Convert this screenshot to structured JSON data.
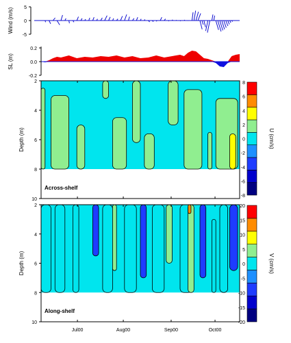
{
  "figure": {
    "colors": {
      "wind": "#1010d0",
      "sl_positive": "#ee0000",
      "sl_negative": "#1010e0",
      "contour": "#000000",
      "frame": "#000000"
    },
    "time_axis": {
      "ticks": [
        {
          "label": "Jul00"
        },
        {
          "label": "Aug00"
        },
        {
          "label": "Sep00"
        },
        {
          "label": "Oct00"
        }
      ]
    }
  },
  "chart_data": [
    {
      "type": "line",
      "variant": "wind stick plot",
      "ylabel": "Wind (m/s)",
      "ylim": [
        -5,
        5
      ],
      "yticks": [
        "-5",
        "0",
        "5"
      ],
      "note": "values approximated from stick tips (u, v) per time step",
      "sticks": [
        {
          "t": 0.02,
          "u": 0.2,
          "v": -0.6
        },
        {
          "t": 0.04,
          "u": 0.6,
          "v": -1.2
        },
        {
          "t": 0.06,
          "u": 0.8,
          "v": 1.0
        },
        {
          "t": 0.08,
          "u": 1.0,
          "v": -1.6
        },
        {
          "t": 0.1,
          "u": 0.6,
          "v": 2.0
        },
        {
          "t": 0.12,
          "u": 0.4,
          "v": 0.8
        },
        {
          "t": 0.14,
          "u": 0.2,
          "v": -1.0
        },
        {
          "t": 0.16,
          "u": 0.4,
          "v": -0.6
        },
        {
          "t": 0.18,
          "u": 0.6,
          "v": 1.4
        },
        {
          "t": 0.2,
          "u": 0.5,
          "v": 0.8
        },
        {
          "t": 0.22,
          "u": 0.3,
          "v": 0.5
        },
        {
          "t": 0.24,
          "u": 0.4,
          "v": 1.0
        },
        {
          "t": 0.26,
          "u": 0.5,
          "v": 1.2
        },
        {
          "t": 0.28,
          "u": 0.3,
          "v": 0.6
        },
        {
          "t": 0.3,
          "u": 0.6,
          "v": 1.0
        },
        {
          "t": 0.32,
          "u": 0.9,
          "v": 1.8
        },
        {
          "t": 0.34,
          "u": 0.6,
          "v": 1.3
        },
        {
          "t": 0.36,
          "u": 0.4,
          "v": 0.8
        },
        {
          "t": 0.38,
          "u": 0.5,
          "v": 0.6
        },
        {
          "t": 0.4,
          "u": 0.7,
          "v": 1.6
        },
        {
          "t": 0.42,
          "u": 0.8,
          "v": 2.2
        },
        {
          "t": 0.44,
          "u": 0.4,
          "v": 1.4
        },
        {
          "t": 0.46,
          "u": 0.6,
          "v": 0.8
        },
        {
          "t": 0.48,
          "u": 0.5,
          "v": 1.2
        },
        {
          "t": 0.5,
          "u": 0.3,
          "v": 0.6
        },
        {
          "t": 0.52,
          "u": 0.2,
          "v": 0.4
        },
        {
          "t": 0.54,
          "u": 0.5,
          "v": -0.5
        },
        {
          "t": 0.56,
          "u": 0.4,
          "v": -0.4
        },
        {
          "t": 0.58,
          "u": 0.2,
          "v": -0.3
        },
        {
          "t": 0.6,
          "u": 0.6,
          "v": 1.2
        },
        {
          "t": 0.62,
          "u": 0.5,
          "v": 0.6
        },
        {
          "t": 0.64,
          "u": 0.3,
          "v": -0.2
        },
        {
          "t": 0.66,
          "u": 0.2,
          "v": 0.3
        },
        {
          "t": 0.68,
          "u": 0.1,
          "v": 0.2
        },
        {
          "t": 0.7,
          "u": 0.2,
          "v": -0.2
        },
        {
          "t": 0.72,
          "u": 0.3,
          "v": 0.2
        },
        {
          "t": 0.74,
          "u": 0.1,
          "v": -0.1
        },
        {
          "t": 0.76,
          "u": 0.4,
          "v": 3.0
        },
        {
          "t": 0.77,
          "u": 0.6,
          "v": 3.6
        },
        {
          "t": 0.78,
          "u": 0.9,
          "v": 3.2
        },
        {
          "t": 0.79,
          "u": 1.0,
          "v": 2.6
        },
        {
          "t": 0.8,
          "u": 0.8,
          "v": -3.2
        },
        {
          "t": 0.81,
          "u": 0.5,
          "v": -1.5
        },
        {
          "t": 0.82,
          "u": 0.6,
          "v": -2.4
        },
        {
          "t": 0.84,
          "u": -0.8,
          "v": -3.8
        },
        {
          "t": 0.85,
          "u": -0.9,
          "v": -4.4
        },
        {
          "t": 0.86,
          "u": 0.4,
          "v": 2.2
        },
        {
          "t": 0.87,
          "u": 0.3,
          "v": 1.8
        },
        {
          "t": 0.88,
          "u": 1.0,
          "v": -3.4
        },
        {
          "t": 0.89,
          "u": 1.2,
          "v": -4.0
        },
        {
          "t": 0.9,
          "u": 1.1,
          "v": -3.6
        },
        {
          "t": 0.91,
          "u": 1.0,
          "v": -3.2
        },
        {
          "t": 0.92,
          "u": 0.9,
          "v": -2.6
        },
        {
          "t": 0.93,
          "u": 0.8,
          "v": -2.0
        },
        {
          "t": 0.94,
          "u": 0.6,
          "v": -1.4
        },
        {
          "t": 0.95,
          "u": 0.4,
          "v": -0.8
        },
        {
          "t": 0.96,
          "u": 0.3,
          "v": -0.4
        }
      ]
    },
    {
      "type": "area",
      "ylabel": "SL (m)",
      "ylim": [
        -0.2,
        0.2
      ],
      "yticks": [
        "-0.2",
        "0.0",
        "0.2"
      ],
      "note": "values approximated",
      "x": [
        0.0,
        0.02,
        0.04,
        0.06,
        0.08,
        0.1,
        0.14,
        0.18,
        0.22,
        0.26,
        0.3,
        0.34,
        0.38,
        0.42,
        0.46,
        0.5,
        0.54,
        0.58,
        0.62,
        0.66,
        0.7,
        0.72,
        0.74,
        0.76,
        0.78,
        0.8,
        0.82,
        0.84,
        0.86,
        0.88,
        0.9,
        0.92,
        0.94,
        0.96,
        0.98,
        1.0
      ],
      "values": [
        0.0,
        -0.01,
        0.02,
        0.05,
        0.07,
        0.06,
        0.09,
        0.05,
        0.07,
        0.06,
        0.08,
        0.07,
        0.09,
        0.06,
        0.08,
        0.05,
        0.06,
        0.09,
        0.06,
        0.08,
        0.1,
        0.08,
        0.13,
        0.16,
        0.15,
        0.1,
        0.05,
        0.04,
        0.02,
        -0.02,
        -0.07,
        -0.08,
        -0.02,
        0.08,
        0.1,
        0.11
      ]
    },
    {
      "type": "heatmap",
      "label": "Across-shelf",
      "ylabel": "Depth (m)",
      "ylim": [
        10,
        2
      ],
      "yticks": [
        "2",
        "4",
        "6",
        "8",
        "10"
      ],
      "colorbar": {
        "label": "U (cm/s)",
        "ticks": [
          "8",
          "6",
          "4",
          "2",
          "0",
          "-2",
          "-4",
          "-6",
          "-8"
        ],
        "levels": [
          -8,
          -6,
          -4,
          -2,
          0,
          2,
          4,
          6,
          8
        ],
        "colors": [
          "#000080",
          "#0000cd",
          "#1e3cff",
          "#1e90ff",
          "#00e5ee",
          "#90ee90",
          "#ffff00",
          "#ff8c00",
          "#ff0000"
        ]
      },
      "note": "approximated: cyan (0 to 2) background with green (2 to 4) vertical bands; yellow core near late Oct",
      "data_depth_range": [
        2,
        8
      ],
      "bands": [
        {
          "t0": 0.0,
          "t1": 0.02,
          "depth0": 2.5,
          "depth1": 8,
          "value": 3
        },
        {
          "t0": 0.05,
          "t1": 0.14,
          "depth0": 3.0,
          "depth1": 8,
          "value": 3
        },
        {
          "t0": 0.18,
          "t1": 0.22,
          "depth0": 5.0,
          "depth1": 8,
          "value": 3
        },
        {
          "t0": 0.31,
          "t1": 0.34,
          "depth0": 2.0,
          "depth1": 3.2,
          "value": 3
        },
        {
          "t0": 0.36,
          "t1": 0.43,
          "depth0": 4.5,
          "depth1": 8,
          "value": 3
        },
        {
          "t0": 0.46,
          "t1": 0.5,
          "depth0": 2.0,
          "depth1": 6.2,
          "value": 3
        },
        {
          "t0": 0.52,
          "t1": 0.57,
          "depth0": 5.6,
          "depth1": 8,
          "value": 3
        },
        {
          "t0": 0.64,
          "t1": 0.69,
          "depth0": 2.0,
          "depth1": 5.0,
          "value": 3
        },
        {
          "t0": 0.72,
          "t1": 0.81,
          "depth0": 2.6,
          "depth1": 8,
          "value": 3
        },
        {
          "t0": 0.84,
          "t1": 0.86,
          "depth0": 5.5,
          "depth1": 8,
          "value": 3
        },
        {
          "t0": 0.88,
          "t1": 0.99,
          "depth0": 3.2,
          "depth1": 8,
          "value": 3
        },
        {
          "t0": 0.95,
          "t1": 0.98,
          "depth0": 5.6,
          "depth1": 8,
          "value": 5
        }
      ]
    },
    {
      "type": "heatmap",
      "label": "Along-shelf",
      "ylabel": "Depth (m)",
      "ylim": [
        10,
        2
      ],
      "yticks": [
        "2",
        "4",
        "6",
        "8",
        "10"
      ],
      "colorbar": {
        "label": "V (cm/s)",
        "ticks": [
          "20",
          "15",
          "10",
          "5",
          "0",
          "-5",
          "-10",
          "-15",
          "-20"
        ],
        "levels": [
          -20,
          -15,
          -10,
          -5,
          0,
          5,
          10,
          15,
          20
        ],
        "colors": [
          "#000080",
          "#0000cd",
          "#1e3cff",
          "#1e90ff",
          "#00e5ee",
          "#90ee90",
          "#ffff00",
          "#ff8c00",
          "#ff0000"
        ]
      },
      "note": "approximated: alternating green/cyan vertical bands with blue and yellow cores; orange/red spot near mid-Sep at 2 m",
      "data_depth_range": [
        2,
        8
      ],
      "bands": [
        {
          "t0": 0.0,
          "t1": 0.05,
          "depth0": 2,
          "depth1": 8,
          "value": 2
        },
        {
          "t0": 0.07,
          "t1": 0.12,
          "depth0": 2,
          "depth1": 8,
          "value": 2
        },
        {
          "t0": 0.16,
          "t1": 0.19,
          "depth0": 2,
          "depth1": 8,
          "value": 2
        },
        {
          "t0": 0.26,
          "t1": 0.29,
          "depth0": 2,
          "depth1": 5.5,
          "value": -7
        },
        {
          "t0": 0.31,
          "t1": 0.36,
          "depth0": 2,
          "depth1": 8,
          "value": 2
        },
        {
          "t0": 0.36,
          "t1": 0.38,
          "depth0": 2,
          "depth1": 6.5,
          "value": 7
        },
        {
          "t0": 0.42,
          "t1": 0.48,
          "depth0": 2,
          "depth1": 8,
          "value": 2
        },
        {
          "t0": 0.5,
          "t1": 0.53,
          "depth0": 2,
          "depth1": 7.0,
          "value": -7
        },
        {
          "t0": 0.56,
          "t1": 0.62,
          "depth0": 2,
          "depth1": 8,
          "value": 2
        },
        {
          "t0": 0.63,
          "t1": 0.66,
          "depth0": 2,
          "depth1": 6.0,
          "value": 7
        },
        {
          "t0": 0.7,
          "t1": 0.76,
          "depth0": 2,
          "depth1": 8,
          "value": 2
        },
        {
          "t0": 0.74,
          "t1": 0.77,
          "depth0": 2,
          "depth1": 8,
          "value": 7
        },
        {
          "t0": 0.74,
          "t1": 0.755,
          "depth0": 2,
          "depth1": 2.6,
          "value": 17
        },
        {
          "t0": 0.8,
          "t1": 0.83,
          "depth0": 2,
          "depth1": 7.0,
          "value": -7
        },
        {
          "t0": 0.86,
          "t1": 0.88,
          "depth0": 3,
          "depth1": 8,
          "value": 2
        },
        {
          "t0": 0.9,
          "t1": 0.94,
          "depth0": 2,
          "depth1": 8,
          "value": 2
        },
        {
          "t0": 0.95,
          "t1": 0.99,
          "depth0": 2,
          "depth1": 6.5,
          "value": -7
        }
      ]
    }
  ]
}
